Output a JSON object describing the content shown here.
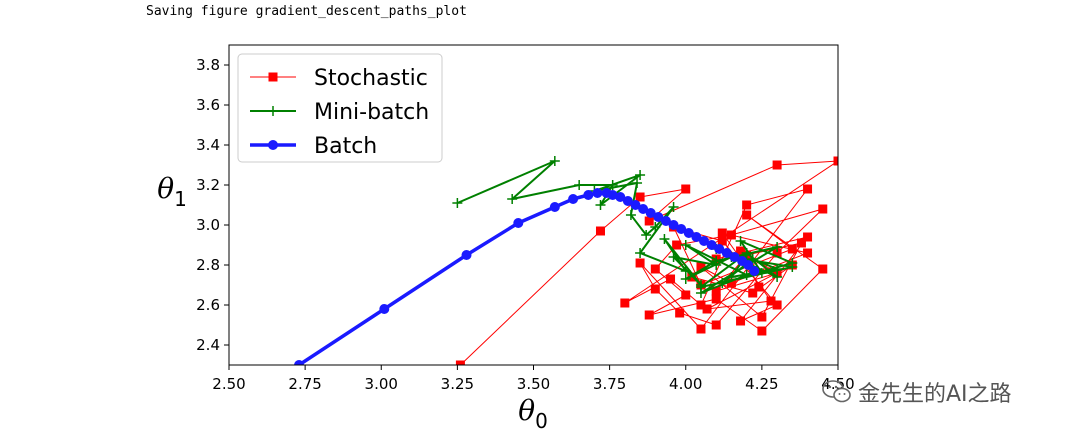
{
  "output_text": "Saving figure gradient_descent_paths_plot",
  "watermark": {
    "text": "金先生的AI之路",
    "icon": "wechat-icon"
  },
  "chart_data": {
    "type": "line",
    "title": "",
    "xlabel": "θ0",
    "ylabel": "θ1",
    "xlim": [
      2.5,
      4.5
    ],
    "ylim": [
      2.3,
      3.9
    ],
    "grid": false,
    "legend_position": "top-left",
    "x_ticks": [
      {
        "value": 2.5,
        "label": "2.50"
      },
      {
        "value": 2.75,
        "label": "2.75"
      },
      {
        "value": 3.0,
        "label": "3.00"
      },
      {
        "value": 3.25,
        "label": "3.25"
      },
      {
        "value": 3.5,
        "label": "3.50"
      },
      {
        "value": 3.75,
        "label": "3.75"
      },
      {
        "value": 4.0,
        "label": "4.00"
      },
      {
        "value": 4.25,
        "label": "4.25"
      },
      {
        "value": 4.5,
        "label": "4.50"
      }
    ],
    "y_ticks": [
      {
        "value": 2.4,
        "label": "2.4"
      },
      {
        "value": 2.6,
        "label": "2.6"
      },
      {
        "value": 2.8,
        "label": "2.8"
      },
      {
        "value": 3.0,
        "label": "3.0"
      },
      {
        "value": 3.2,
        "label": "3.2"
      },
      {
        "value": 3.4,
        "label": "3.4"
      },
      {
        "value": 3.6,
        "label": "3.6"
      },
      {
        "value": 3.8,
        "label": "3.8"
      }
    ],
    "series": [
      {
        "name": "Stochastic",
        "color": "#ff0000",
        "marker": "square",
        "line_width": 1,
        "x": [
          3.26,
          3.72,
          3.85,
          4.0,
          3.88,
          4.3,
          4.5,
          3.8,
          3.95,
          4.05,
          4.2,
          4.4,
          4.05,
          3.85,
          3.9,
          3.98,
          4.1,
          4.3,
          4.45,
          4.15,
          3.97,
          3.9,
          4.0,
          3.88,
          4.1,
          4.25,
          4.45,
          4.2,
          4.35,
          4.05,
          3.96,
          4.12,
          4.3,
          4.18,
          4.4,
          4.1,
          4.02,
          4.22,
          4.35,
          4.07,
          4.28,
          4.12,
          4.4,
          4.15,
          4.05,
          4.25,
          4.38,
          4.2,
          4.1,
          4.3,
          4.18,
          4.24
        ],
        "y": [
          2.3,
          2.97,
          3.14,
          3.18,
          3.02,
          3.3,
          3.32,
          2.61,
          2.73,
          2.6,
          3.1,
          3.18,
          2.48,
          2.81,
          2.68,
          2.56,
          2.5,
          2.86,
          3.08,
          2.95,
          2.9,
          2.78,
          2.65,
          2.55,
          2.63,
          2.47,
          2.78,
          3.05,
          2.88,
          2.7,
          2.99,
          2.92,
          2.6,
          2.52,
          2.94,
          2.83,
          2.74,
          2.66,
          2.8,
          2.58,
          2.62,
          2.96,
          2.86,
          2.71,
          2.79,
          2.54,
          2.91,
          2.85,
          2.67,
          2.76,
          2.87,
          2.69
        ]
      },
      {
        "name": "Mini-batch",
        "color": "#008000",
        "marker": "plus",
        "line_width": 2,
        "x": [
          3.25,
          3.57,
          3.43,
          3.65,
          3.76,
          3.72,
          3.85,
          3.7,
          3.84,
          3.82,
          3.87,
          3.9,
          3.96,
          3.85,
          4.0,
          3.93,
          4.05,
          3.96,
          4.1,
          4.0,
          4.2,
          4.05,
          4.3,
          4.1,
          4.0,
          4.15,
          4.35,
          4.05,
          4.2,
          4.3,
          4.1,
          4.25,
          4.18,
          4.35,
          4.12,
          4.22,
          4.3,
          4.15,
          4.2
        ],
        "y": [
          3.11,
          3.32,
          3.13,
          3.2,
          3.2,
          3.1,
          3.25,
          3.17,
          3.21,
          3.05,
          2.95,
          2.99,
          3.09,
          2.86,
          2.77,
          2.93,
          2.7,
          2.84,
          2.8,
          2.9,
          2.75,
          2.66,
          2.89,
          2.82,
          2.73,
          2.84,
          2.79,
          2.69,
          2.86,
          2.74,
          2.88,
          2.76,
          2.92,
          2.81,
          2.71,
          2.83,
          2.78,
          2.74,
          2.85
        ]
      },
      {
        "name": "Batch",
        "color": "#1a1aff",
        "marker": "circle",
        "line_width": 3.5,
        "x": [
          2.73,
          3.01,
          3.28,
          3.45,
          3.57,
          3.63,
          3.68,
          3.71,
          3.74,
          3.76,
          3.785,
          3.81,
          3.835,
          3.86,
          3.885,
          3.91,
          3.935,
          3.96,
          3.985,
          4.01,
          4.035,
          4.06,
          4.085,
          4.11,
          4.135,
          4.16,
          4.185,
          4.205,
          4.225
        ],
        "y": [
          2.3,
          2.58,
          2.85,
          3.01,
          3.09,
          3.13,
          3.15,
          3.16,
          3.16,
          3.15,
          3.14,
          3.12,
          3.1,
          3.08,
          3.06,
          3.04,
          3.02,
          3.0,
          2.98,
          2.96,
          2.94,
          2.92,
          2.9,
          2.88,
          2.86,
          2.84,
          2.82,
          2.8,
          2.77
        ]
      }
    ]
  }
}
